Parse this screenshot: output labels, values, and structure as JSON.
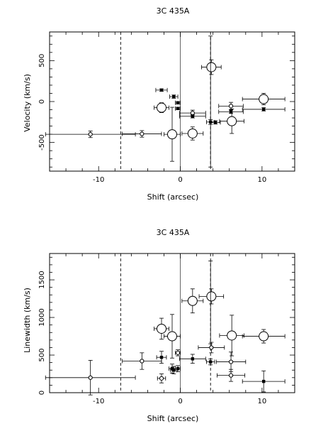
{
  "chart_data": [
    {
      "type": "scatter",
      "title": "3C 435A",
      "xlabel": "Shift (arcsec)",
      "ylabel": "Velocity (km/s)",
      "xlim": [
        -16,
        14
      ],
      "ylim": [
        -850,
        850
      ],
      "x_ticks": [
        -10,
        0,
        10
      ],
      "y_ticks": [
        -500,
        0,
        500
      ],
      "grid": false,
      "reference_lines": {
        "solid_vertical_x": 0,
        "dashed_vertical_x": [
          -7.3,
          3.7
        ]
      },
      "series": [
        {
          "marker": "large-open-circle",
          "points": [
            {
              "x": -2.3,
              "y": -75,
              "xerr": 0.9,
              "yerr": 60
            },
            {
              "x": -1.0,
              "y": -400,
              "xerr": 1.0,
              "yerr": 330
            },
            {
              "x": 1.5,
              "y": -390,
              "xerr": 1.3,
              "yerr": 80
            },
            {
              "x": 3.8,
              "y": 420,
              "xerr": 1.2,
              "yerr": 90
            },
            {
              "x": 6.3,
              "y": -240,
              "xerr": 1.5,
              "yerr": 150
            },
            {
              "x": 10.2,
              "y": 30,
              "xerr": 2.6,
              "yerr": 70
            }
          ]
        },
        {
          "marker": "small-open-circle",
          "points": [
            {
              "x": -11.0,
              "y": -400,
              "xerr": 5.5,
              "yerr": 40
            },
            {
              "x": -4.7,
              "y": -395,
              "xerr": 2.4,
              "yerr": 40
            },
            {
              "x": 1.5,
              "y": -140,
              "xerr": 1.6,
              "yerr": 35
            },
            {
              "x": 6.2,
              "y": -55,
              "xerr": 1.5,
              "yerr": 45
            }
          ]
        },
        {
          "marker": "filled-dot",
          "points": [
            {
              "x": -2.3,
              "y": 140,
              "xerr": 0.7,
              "yerr": 15
            },
            {
              "x": -0.8,
              "y": 60,
              "xerr": 0.5,
              "yerr": 20
            },
            {
              "x": -0.3,
              "y": -15,
              "xerr": 0.3,
              "yerr": 15
            },
            {
              "x": -0.3,
              "y": -85,
              "xerr": 0.3,
              "yerr": 15
            },
            {
              "x": 1.5,
              "y": -180,
              "xerr": 1.6,
              "yerr": 20
            },
            {
              "x": 3.7,
              "y": -250,
              "xerr": 0.5,
              "yerr": 30
            },
            {
              "x": 4.3,
              "y": -255,
              "xerr": 0.6,
              "yerr": 20
            },
            {
              "x": 6.2,
              "y": -125,
              "xerr": 1.5,
              "yerr": 20
            },
            {
              "x": 10.2,
              "y": -95,
              "xerr": 2.6,
              "yerr": 20
            }
          ]
        },
        {
          "marker": "none",
          "points": [
            {
              "x": 3.7,
              "y": 0,
              "xerr": 0,
              "yerr": 800
            }
          ]
        }
      ]
    },
    {
      "type": "scatter",
      "title": "3C 435A",
      "xlabel": "Shift (arcsec)",
      "ylabel": "Linewidth (km/s)",
      "xlim": [
        -16,
        14
      ],
      "ylim": [
        0,
        1850
      ],
      "x_ticks": [
        -10,
        0,
        10
      ],
      "y_ticks": [
        0,
        500,
        1000,
        1500
      ],
      "grid": false,
      "reference_lines": {
        "solid_vertical_x": 0,
        "dashed_vertical_x": [
          -7.3,
          3.7
        ]
      },
      "series": [
        {
          "marker": "large-open-circle",
          "points": [
            {
              "x": -2.3,
              "y": 850,
              "xerr": 0.9,
              "yerr": 140
            },
            {
              "x": -1.0,
              "y": 750,
              "xerr": 1.0,
              "yerr": 290
            },
            {
              "x": 1.5,
              "y": 1220,
              "xerr": 1.3,
              "yerr": 160
            },
            {
              "x": 3.8,
              "y": 1280,
              "xerr": 1.5,
              "yerr": 100
            },
            {
              "x": 6.3,
              "y": 760,
              "xerr": 1.5,
              "yerr": 270
            },
            {
              "x": 10.2,
              "y": 750,
              "xerr": 2.6,
              "yerr": 90
            }
          ]
        },
        {
          "marker": "small-open-circle",
          "points": [
            {
              "x": -11.0,
              "y": 200,
              "xerr": 5.5,
              "yerr": 230
            },
            {
              "x": -4.7,
              "y": 420,
              "xerr": 2.4,
              "yerr": 110
            },
            {
              "x": -2.3,
              "y": 190,
              "xerr": 0.5,
              "yerr": 60
            },
            {
              "x": -0.3,
              "y": 530,
              "xerr": 0.3,
              "yerr": 40
            },
            {
              "x": 3.8,
              "y": 600,
              "xerr": 1.6,
              "yerr": 70
            },
            {
              "x": 6.2,
              "y": 410,
              "xerr": 1.8,
              "yerr": 130
            },
            {
              "x": 6.2,
              "y": 230,
              "xerr": 1.7,
              "yerr": 80
            }
          ]
        },
        {
          "marker": "filled-dot",
          "points": [
            {
              "x": -2.3,
              "y": 470,
              "xerr": 0.6,
              "yerr": 80
            },
            {
              "x": -1.0,
              "y": 320,
              "xerr": 0.4,
              "yerr": 60
            },
            {
              "x": -0.8,
              "y": 300,
              "xerr": 0.4,
              "yerr": 50
            },
            {
              "x": -0.3,
              "y": 320,
              "xerr": 0.3,
              "yerr": 40
            },
            {
              "x": 1.5,
              "y": 450,
              "xerr": 1.6,
              "yerr": 60
            },
            {
              "x": 3.7,
              "y": 410,
              "xerr": 0.5,
              "yerr": 40
            },
            {
              "x": 10.2,
              "y": 150,
              "xerr": 2.6,
              "yerr": 140
            }
          ]
        },
        {
          "marker": "none",
          "points": [
            {
              "x": 3.7,
              "y": 1200,
              "xerr": 0,
              "yerr": 550
            }
          ]
        }
      ]
    }
  ]
}
